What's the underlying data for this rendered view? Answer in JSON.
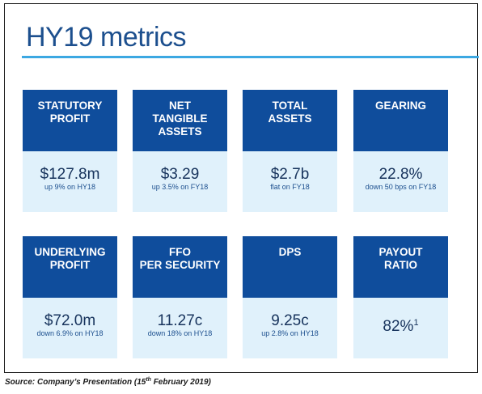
{
  "title": "HY19 metrics",
  "metrics": [
    {
      "head": [
        "STATUTORY",
        "PROFIT"
      ],
      "value": "$127.8m",
      "note": "up 9% on HY18"
    },
    {
      "head": [
        "NET",
        "TANGIBLE",
        "ASSETS"
      ],
      "value": "$3.29",
      "note": "up 3.5% on FY18"
    },
    {
      "head": [
        "TOTAL",
        "ASSETS"
      ],
      "value": "$2.7b",
      "note": "flat on FY18"
    },
    {
      "head": [
        "GEARING"
      ],
      "value": "22.8%",
      "note": "down 50 bps on FY18"
    },
    {
      "head": [
        "UNDERLYING",
        "PROFIT"
      ],
      "value": "$72.0m",
      "note": "down 6.9% on HY18"
    },
    {
      "head": [
        "FFO",
        "PER SECURITY"
      ],
      "value": "11.27c",
      "note": "down 18% on HY18"
    },
    {
      "head": [
        "DPS"
      ],
      "value": "9.25c",
      "note": "up 2.8% on HY18"
    },
    {
      "head": [
        "PAYOUT",
        "RATIO"
      ],
      "value": "82%",
      "value_superscript": "1",
      "note": ""
    }
  ],
  "source": {
    "prefix": "Source: Company’s Presentation (15",
    "superscript": "th",
    "suffix": " February 2019)"
  },
  "colors": {
    "title": "#1c4f8e",
    "title_rule": "#3ca8e2",
    "tile_header": "#0f4d9c",
    "tile_body": "#e0f1fb",
    "value_text": "#17335c"
  }
}
